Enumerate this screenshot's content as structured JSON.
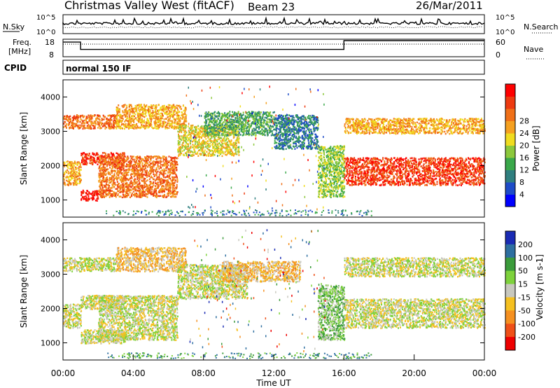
{
  "header": {
    "title": "Christmas Valley West (fitACF)",
    "beam": "Beam 23",
    "date": "26/Mar/2011"
  },
  "chart_data": [
    {
      "type": "line",
      "id": "noise",
      "left_labels": [
        "N.Sky"
      ],
      "right_labels": [
        "N.Search"
      ],
      "yticks_left": [
        "10^5",
        "10^0"
      ],
      "yticks_right": [
        "10^5",
        "10^0"
      ]
    },
    {
      "type": "line",
      "id": "freq-nave",
      "left_labels": [
        "Freq.",
        "[MHz]"
      ],
      "right_labels": [
        "Nave"
      ],
      "yticks_left": [
        "18",
        "8"
      ],
      "yticks_right": [
        "60",
        "0"
      ],
      "freq_steps": [
        {
          "from": 0.0,
          "to": 1.0,
          "value": 17
        },
        {
          "from": 1.0,
          "to": 16.0,
          "value": 12
        },
        {
          "from": 16.0,
          "to": 24.0,
          "value": 18
        }
      ],
      "ylim_left": [
        8,
        18
      ]
    },
    {
      "type": "table",
      "id": "cpid",
      "label": "CPID",
      "value": "normal 150 IF"
    },
    {
      "type": "heatmap",
      "id": "power",
      "xlabel": "",
      "ylabel": "Slant Range [km]",
      "xlim": [
        0,
        24
      ],
      "ylim": [
        500,
        4500
      ],
      "yticks": [
        1000,
        2000,
        3000,
        4000
      ],
      "colorbar": {
        "label": "Power [dB]",
        "ticks": [
          4,
          8,
          12,
          16,
          20,
          24,
          28
        ],
        "colors": [
          "#0000ff",
          "#1e4cc8",
          "#2f7f7f",
          "#3aa84a",
          "#8cc83c",
          "#f0dc20",
          "#f5a020",
          "#f07018",
          "#ee3a10",
          "#ff0000"
        ]
      },
      "bands": [
        {
          "t0": 0.0,
          "t1": 1.0,
          "r0": 1450,
          "r1": 2150,
          "level": 6
        },
        {
          "t0": 1.0,
          "t1": 2.0,
          "r0": 1000,
          "r1": 1300,
          "level": 9
        },
        {
          "t0": 1.0,
          "t1": 3.5,
          "r0": 2050,
          "r1": 2400,
          "level": 8
        },
        {
          "t0": 0.0,
          "t1": 3.0,
          "r0": 3100,
          "r1": 3500,
          "level": 7
        },
        {
          "t0": 2.0,
          "t1": 6.5,
          "r0": 1100,
          "r1": 2300,
          "level": 7
        },
        {
          "t0": 3.0,
          "t1": 7.0,
          "r0": 3100,
          "r1": 3800,
          "level": 6
        },
        {
          "t0": 6.5,
          "t1": 10.0,
          "r0": 2300,
          "r1": 3200,
          "level": 5
        },
        {
          "t0": 8.0,
          "t1": 12.0,
          "r0": 2900,
          "r1": 3600,
          "level": 3
        },
        {
          "t0": 12.0,
          "t1": 14.5,
          "r0": 2500,
          "r1": 3500,
          "level": 2
        },
        {
          "t0": 14.5,
          "t1": 16.0,
          "r0": 1100,
          "r1": 2600,
          "level": 4
        },
        {
          "t0": 16.0,
          "t1": 24.0,
          "r0": 1450,
          "r1": 2250,
          "level": 8
        },
        {
          "t0": 16.0,
          "t1": 24.0,
          "r0": 2950,
          "r1": 3400,
          "level": 6
        }
      ]
    },
    {
      "type": "heatmap",
      "id": "velocity",
      "xlabel": "Time UT",
      "ylabel": "Slant Range [km]",
      "xlim": [
        0,
        24
      ],
      "ylim": [
        500,
        4500
      ],
      "xticks": [
        "00:00",
        "04:00",
        "08:00",
        "12:00",
        "16:00",
        "20:00",
        "00:00"
      ],
      "yticks": [
        1000,
        2000,
        3000,
        4000
      ],
      "colorbar": {
        "label": "Velocity [m s-1]",
        "ticks": [
          200,
          100,
          50,
          15,
          -15,
          -50,
          -100,
          -200
        ],
        "colors": [
          "#1a2bb4",
          "#2e6fa0",
          "#3b9b3b",
          "#7ed23c",
          "#c8c8be",
          "#f5c020",
          "#f59020",
          "#ef5018",
          "#ee0000"
        ]
      },
      "bands": [
        {
          "t0": 0.0,
          "t1": 1.0,
          "r0": 1450,
          "r1": 2150,
          "level": 4
        },
        {
          "t0": 1.0,
          "t1": 3.5,
          "r0": 1000,
          "r1": 1400,
          "level": 4
        },
        {
          "t0": 1.0,
          "t1": 3.5,
          "r0": 2000,
          "r1": 2400,
          "level": 4
        },
        {
          "t0": 0.0,
          "t1": 3.0,
          "r0": 3100,
          "r1": 3500,
          "level": 4
        },
        {
          "t0": 2.0,
          "t1": 6.5,
          "r0": 1100,
          "r1": 2400,
          "level": 4
        },
        {
          "t0": 3.0,
          "t1": 7.0,
          "r0": 3100,
          "r1": 3800,
          "level": 5
        },
        {
          "t0": 6.5,
          "t1": 10.5,
          "r0": 2300,
          "r1": 3300,
          "level": 4
        },
        {
          "t0": 9.0,
          "t1": 13.5,
          "r0": 2800,
          "r1": 3400,
          "level": 5
        },
        {
          "t0": 14.5,
          "t1": 16.0,
          "r0": 1100,
          "r1": 2700,
          "level": 3
        },
        {
          "t0": 16.0,
          "t1": 24.0,
          "r0": 1450,
          "r1": 2300,
          "level": 4
        },
        {
          "t0": 16.0,
          "t1": 24.0,
          "r0": 2950,
          "r1": 3500,
          "level": 4
        }
      ]
    }
  ]
}
